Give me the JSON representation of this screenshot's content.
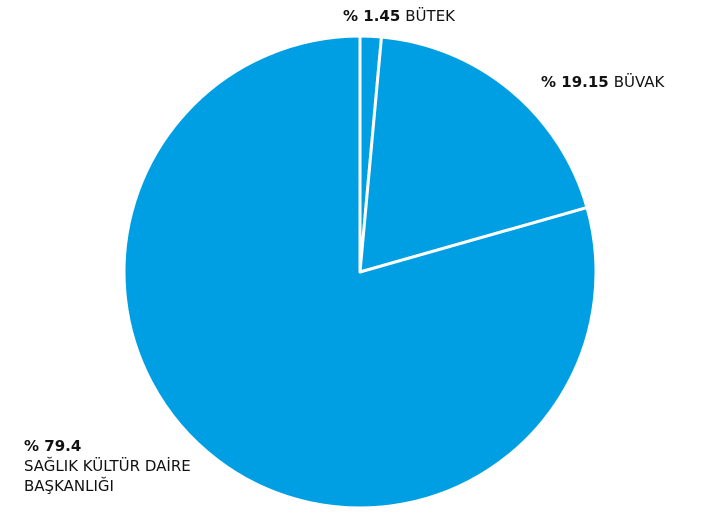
{
  "chart_data": {
    "type": "pie",
    "categories": [
      "BÜTEK",
      "BÜVAK",
      "SAĞLIK KÜLTÜR DAİRE BAŞKANLIĞI"
    ],
    "values": [
      1.45,
      19.15,
      79.4
    ],
    "value_labels": [
      "% 1.45",
      "% 19.15",
      "% 79.4"
    ],
    "color": "#009fe3"
  }
}
